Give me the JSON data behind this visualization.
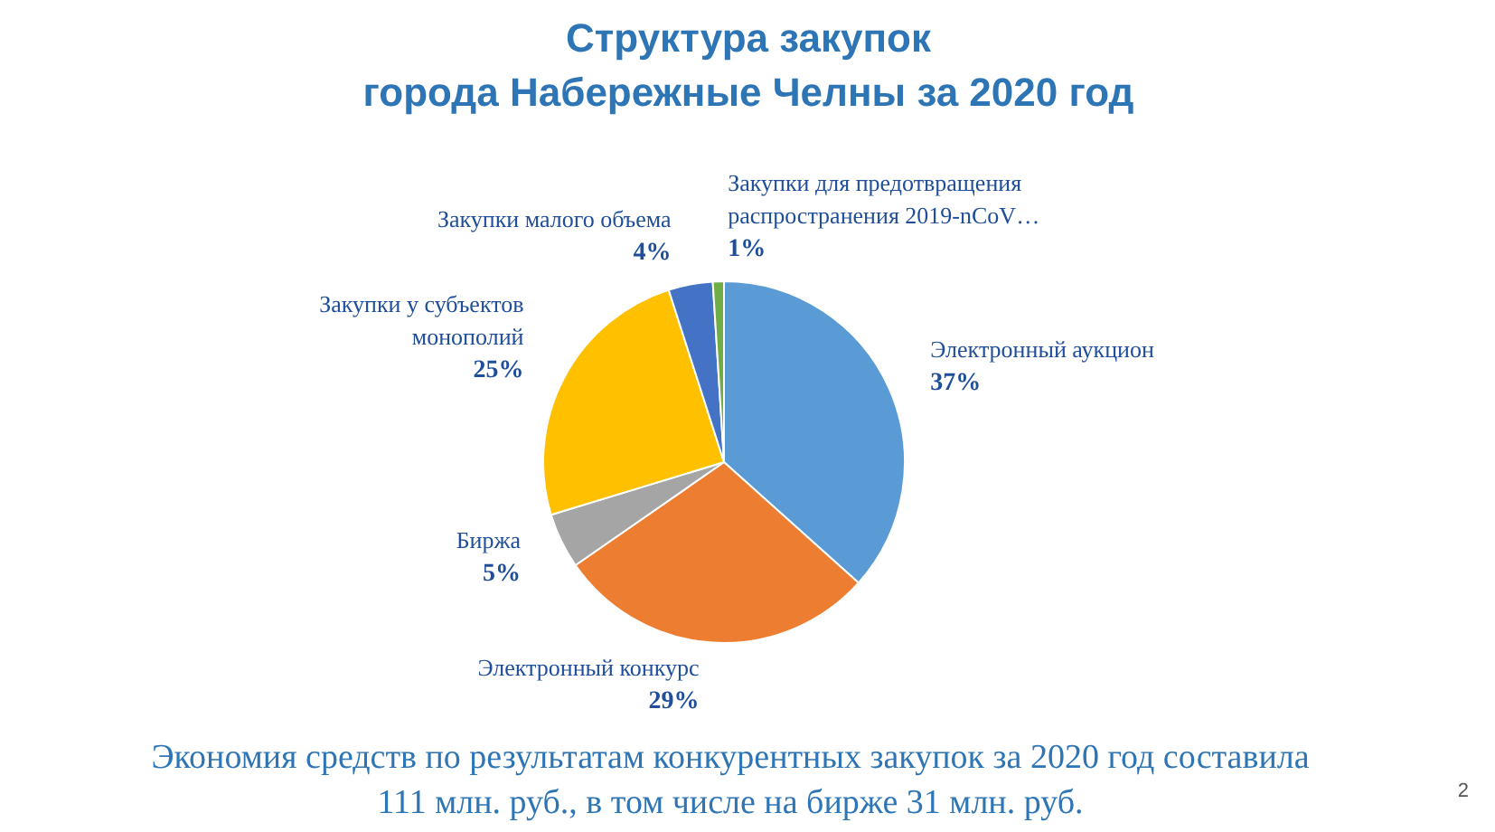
{
  "chart_data": {
    "type": "pie",
    "title": "Структура закупок\nгорода Набережные Челны за 2020 год",
    "categories": [
      "Электронный аукцион",
      "Электронный конкурс",
      "Биржа",
      "Закупки у субъектов монополий",
      "Закупки малого объема",
      "Закупки для предотвращения распространения 2019-nCoV…"
    ],
    "values": [
      37,
      29,
      5,
      25,
      4,
      1
    ],
    "colors": [
      "#5b9bd5",
      "#ed7d31",
      "#a5a5a5",
      "#ffc000",
      "#4472c4",
      "#70ad47"
    ],
    "value_labels": [
      "37%",
      "29%",
      "5%",
      "25%",
      "4%",
      "1%"
    ],
    "annotations": [
      "Экономия средств по результатам конкурентных закупок за 2020 год составила\n111 млн. руб., в том числе на бирже 31 млн. руб.",
      "2"
    ]
  }
}
